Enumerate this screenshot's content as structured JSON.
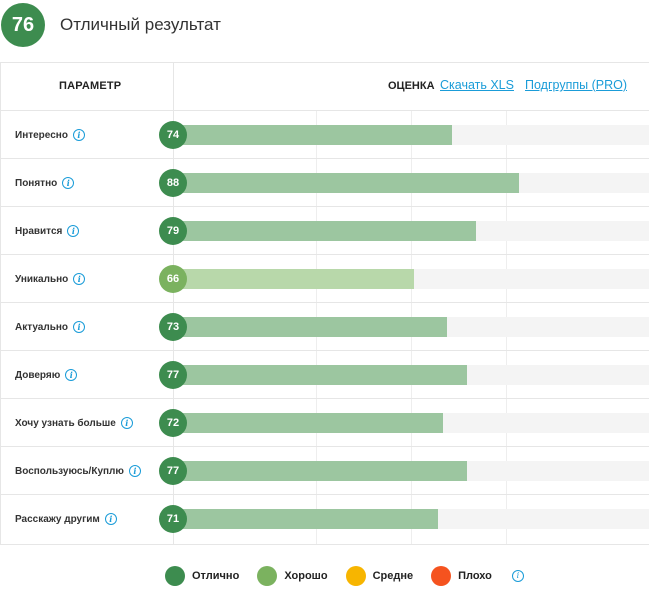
{
  "header": {
    "score": "76",
    "title": "Отличный результат"
  },
  "table": {
    "param_header": "ПАРАМЕТР",
    "score_header": "ОЦЕНКА",
    "download_link": "Скачать XLS",
    "subgroups_link": "Подгруппы (PRO)"
  },
  "rows": [
    {
      "label": "Интересно",
      "value": 74,
      "value_text": "74",
      "level": "excellent"
    },
    {
      "label": "Понятно",
      "value": 88,
      "value_text": "88",
      "level": "excellent"
    },
    {
      "label": "Нравится",
      "value": 79,
      "value_text": "79",
      "level": "excellent"
    },
    {
      "label": "Уникально",
      "value": 66,
      "value_text": "66",
      "level": "good"
    },
    {
      "label": "Актуально",
      "value": 73,
      "value_text": "73",
      "level": "excellent"
    },
    {
      "label": "Доверяю",
      "value": 77,
      "value_text": "77",
      "level": "excellent"
    },
    {
      "label": "Хочу узнать больше",
      "value": 72,
      "value_text": "72",
      "level": "excellent"
    },
    {
      "label": "Воспользуюсь/Куплю",
      "value": 77,
      "value_text": "77",
      "level": "excellent"
    },
    {
      "label": "Расскажу другим",
      "value": 71,
      "value_text": "71",
      "level": "excellent"
    }
  ],
  "legend": [
    {
      "label": "Отлично",
      "color": "#3d8c4f"
    },
    {
      "label": "Хорошо",
      "color": "#7bb25f"
    },
    {
      "label": "Средне",
      "color": "#f7b500"
    },
    {
      "label": "Плохо",
      "color": "#f5531f"
    }
  ],
  "colors": {
    "accent_link": "#1a9cd8",
    "excellent": "#3d8c4f",
    "good": "#7bb25f"
  },
  "icons": {
    "info": "info-icon"
  }
}
